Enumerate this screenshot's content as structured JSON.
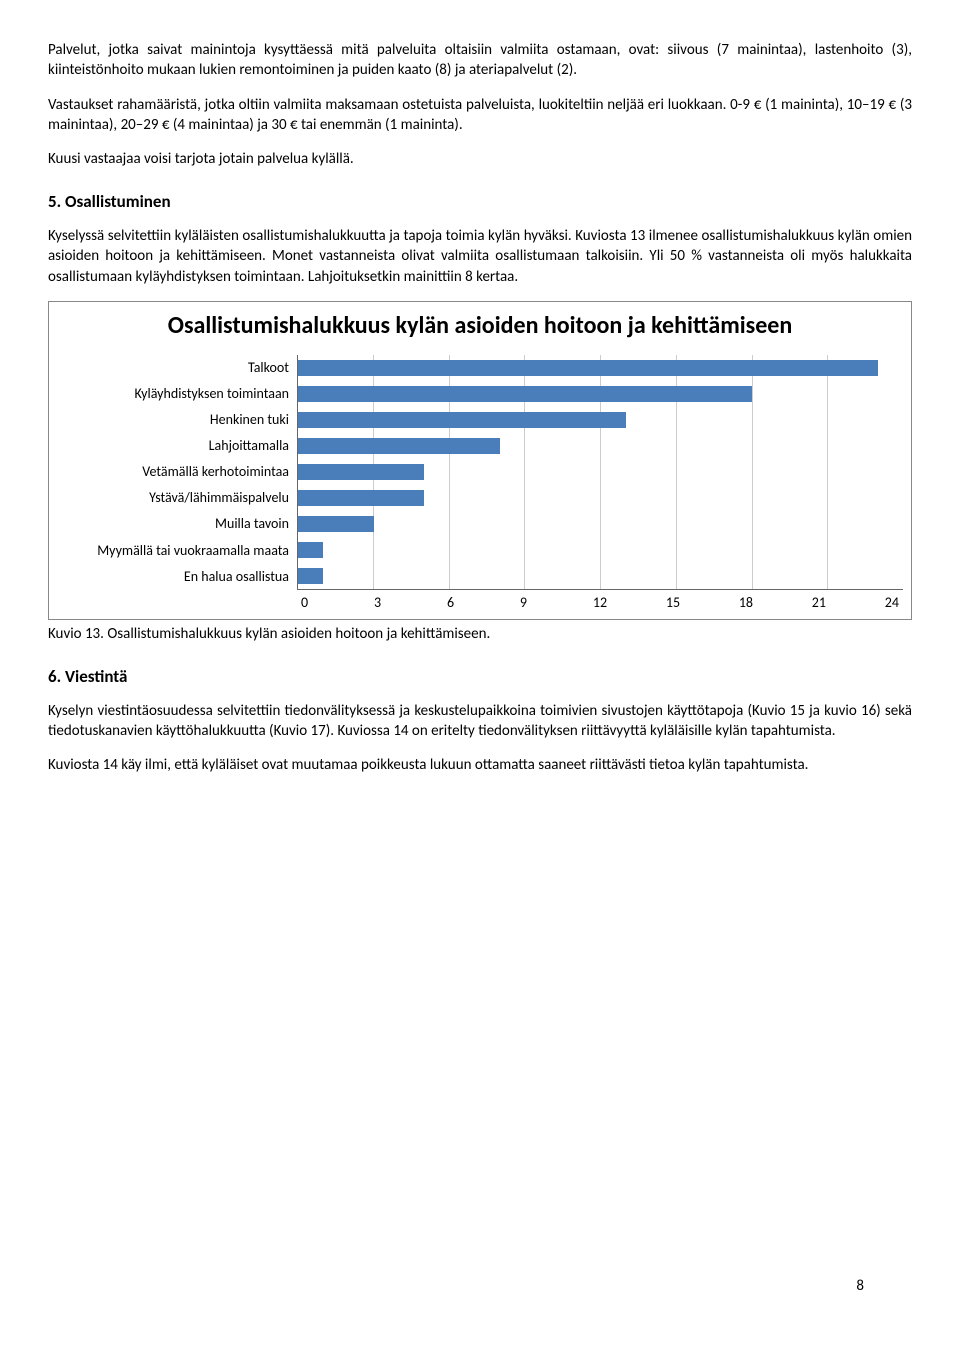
{
  "para1": "Palvelut, jotka saivat mainintoja kysyttäessä mitä palveluita oltaisiin valmiita ostamaan, ovat: siivous (7 mainintaa), lastenhoito (3), kiinteistönhoito mukaan lukien remontoiminen ja puiden kaato (8) ja ateriapalvelut (2).",
  "para2": "Vastaukset rahamääristä, jotka oltiin valmiita maksamaan ostetuista palveluista, luokiteltiin neljää eri luokkaan. 0-9 € (1 maininta), 10–19 € (3 mainintaa), 20–29 € (4 mainintaa) ja 30 € tai enemmän (1 maininta).",
  "para3": "Kuusi vastaajaa voisi tarjota jotain palvelua kylällä.",
  "h5": "5. Osallistuminen",
  "para4": "Kyselyssä selvitettiin kyläläisten osallistumishalukkuutta ja tapoja toimia kylän hyväksi. Kuviosta 13 ilmenee osallistumishalukkuus kylän omien asioiden hoitoon ja kehittämiseen. Monet vastanneista olivat valmiita osallistumaan talkoisiin. Yli 50 % vastanneista oli myös halukkaita osallistumaan kyläyhdistyksen toimintaan. Lahjoituksetkin mainittiin 8 kertaa.",
  "chart": {
    "title": "Osallistumishalukkuus kylän asioiden hoitoon ja kehittämiseen",
    "categories": [
      "Talkoot",
      "Kyläyhdistyksen toimintaan",
      "Henkinen tuki",
      "Lahjoittamalla",
      "Vetämällä kerhotoimintaa",
      "Ystävä/lähimmäispalvelu",
      "Muilla tavoin",
      "Myymällä tai vuokraamalla maata",
      "En halua osallistua"
    ],
    "values": [
      23,
      18,
      13,
      8,
      5,
      5,
      3,
      1,
      1
    ],
    "xmax": 24,
    "xticks": [
      0,
      3,
      6,
      9,
      12,
      15,
      18,
      21,
      24
    ],
    "bar_color": "#4a7ebb",
    "grid_color": "#cccccc",
    "axis_color": "#666666"
  },
  "caption13": "Kuvio 13. Osallistumishalukkuus kylän asioiden hoitoon ja kehittämiseen.",
  "h6": "6. Viestintä",
  "para5": "Kyselyn viestintäosuudessa selvitettiin tiedonvälityksessä ja keskustelupaikkoina toimivien sivustojen käyttötapoja (Kuvio 15 ja kuvio 16) sekä tiedotuskanavien käyttöhalukkuutta (Kuvio 17). Kuviossa 14 on eritelty tiedonvälityksen riittävyyttä kyläläisille kylän tapahtumista.",
  "para6": "Kuviosta 14 käy ilmi, että kyläläiset ovat muutamaa poikkeusta lukuun ottamatta saaneet riittävästi tietoa kylän tapahtumista.",
  "page_number": "8"
}
